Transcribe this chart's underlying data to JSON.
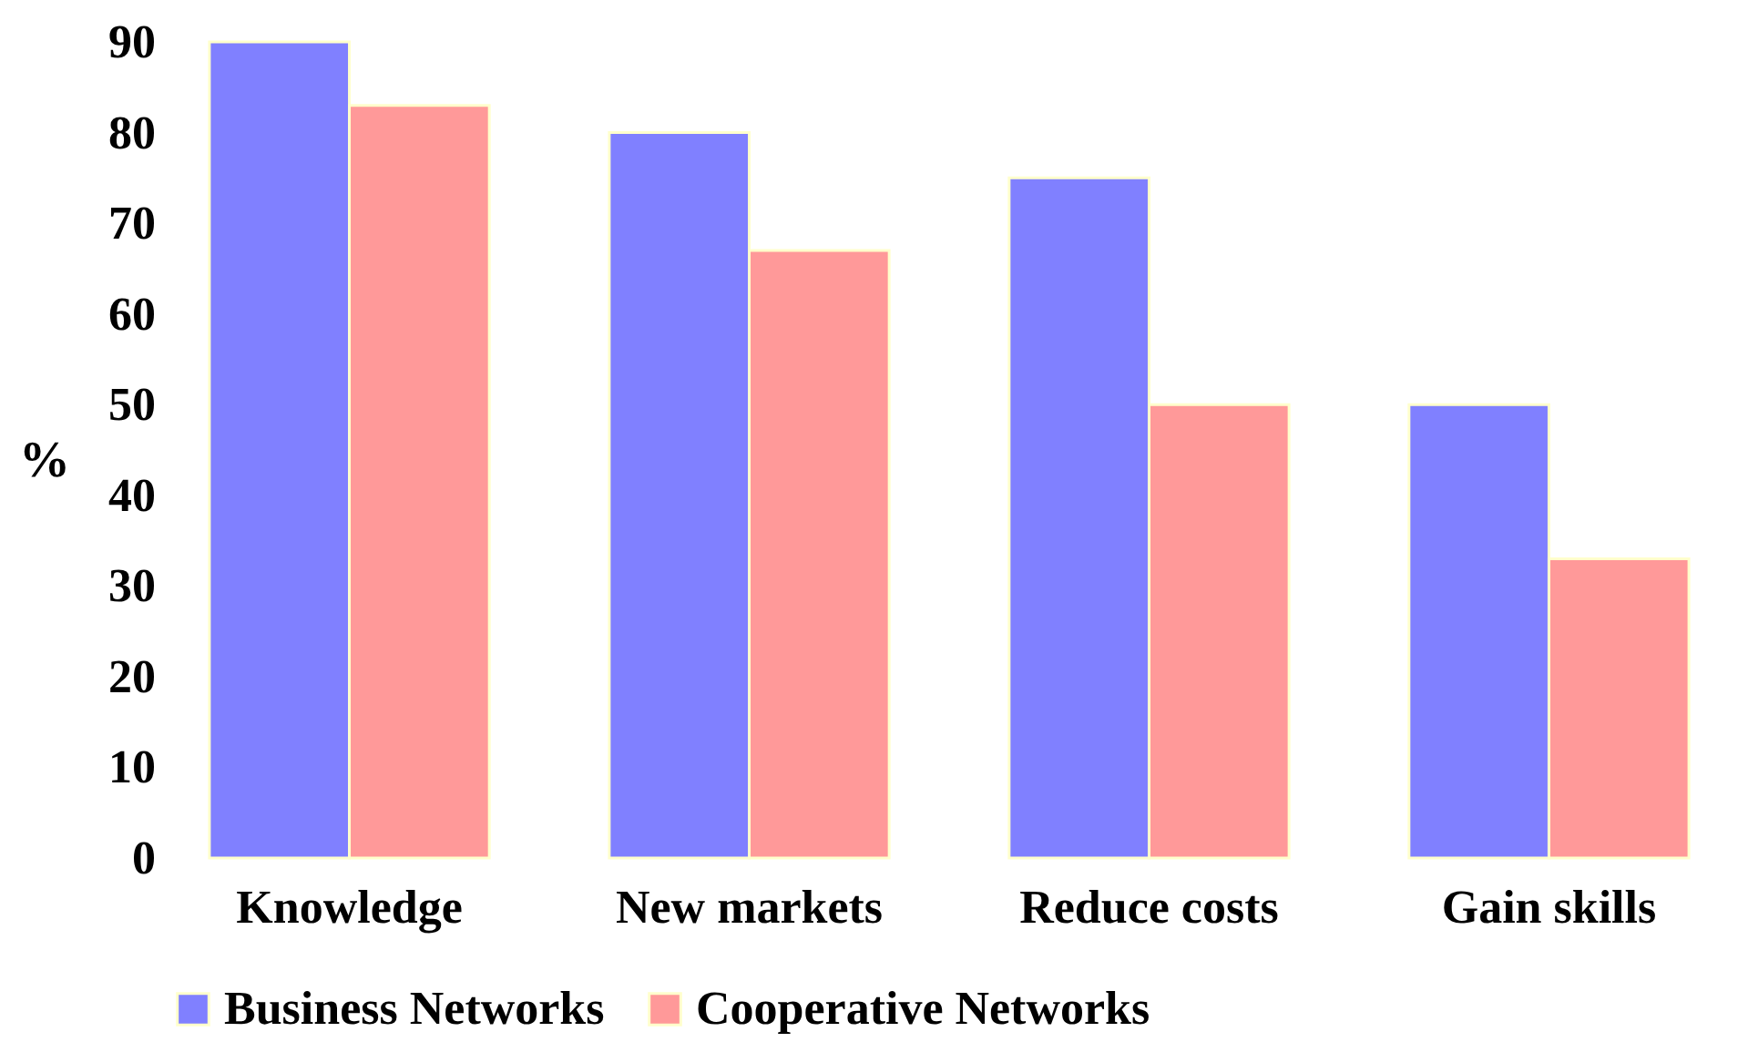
{
  "chart_data": {
    "type": "bar",
    "ylabel": "%",
    "categories": [
      "Knowledge",
      "New markets",
      "Reduce costs",
      "Gain skills"
    ],
    "series": [
      {
        "name": "Business Networks",
        "color": "#8080ff",
        "values": [
          90,
          80,
          75,
          50
        ]
      },
      {
        "name": "Cooperative Networks",
        "color": "#ff9999",
        "values": [
          83,
          67,
          50,
          33
        ]
      }
    ],
    "ylim": [
      0,
      90
    ],
    "yticks": [
      0,
      10,
      20,
      30,
      40,
      50,
      60,
      70,
      80,
      90
    ],
    "grid": false,
    "legend": "bottom"
  }
}
